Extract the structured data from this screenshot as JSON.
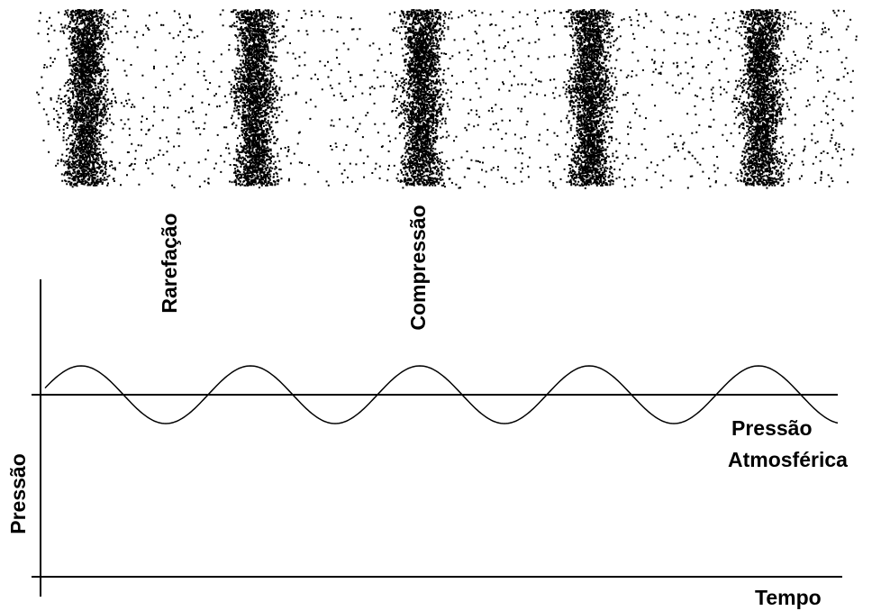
{
  "labels": {
    "rarefaction": "Rarefação",
    "compression": "Compressão",
    "y_axis": "Pressão",
    "atmospheric_pressure": [
      "Pressão",
      "Atmosférica"
    ],
    "x_axis": "Tempo"
  }
}
